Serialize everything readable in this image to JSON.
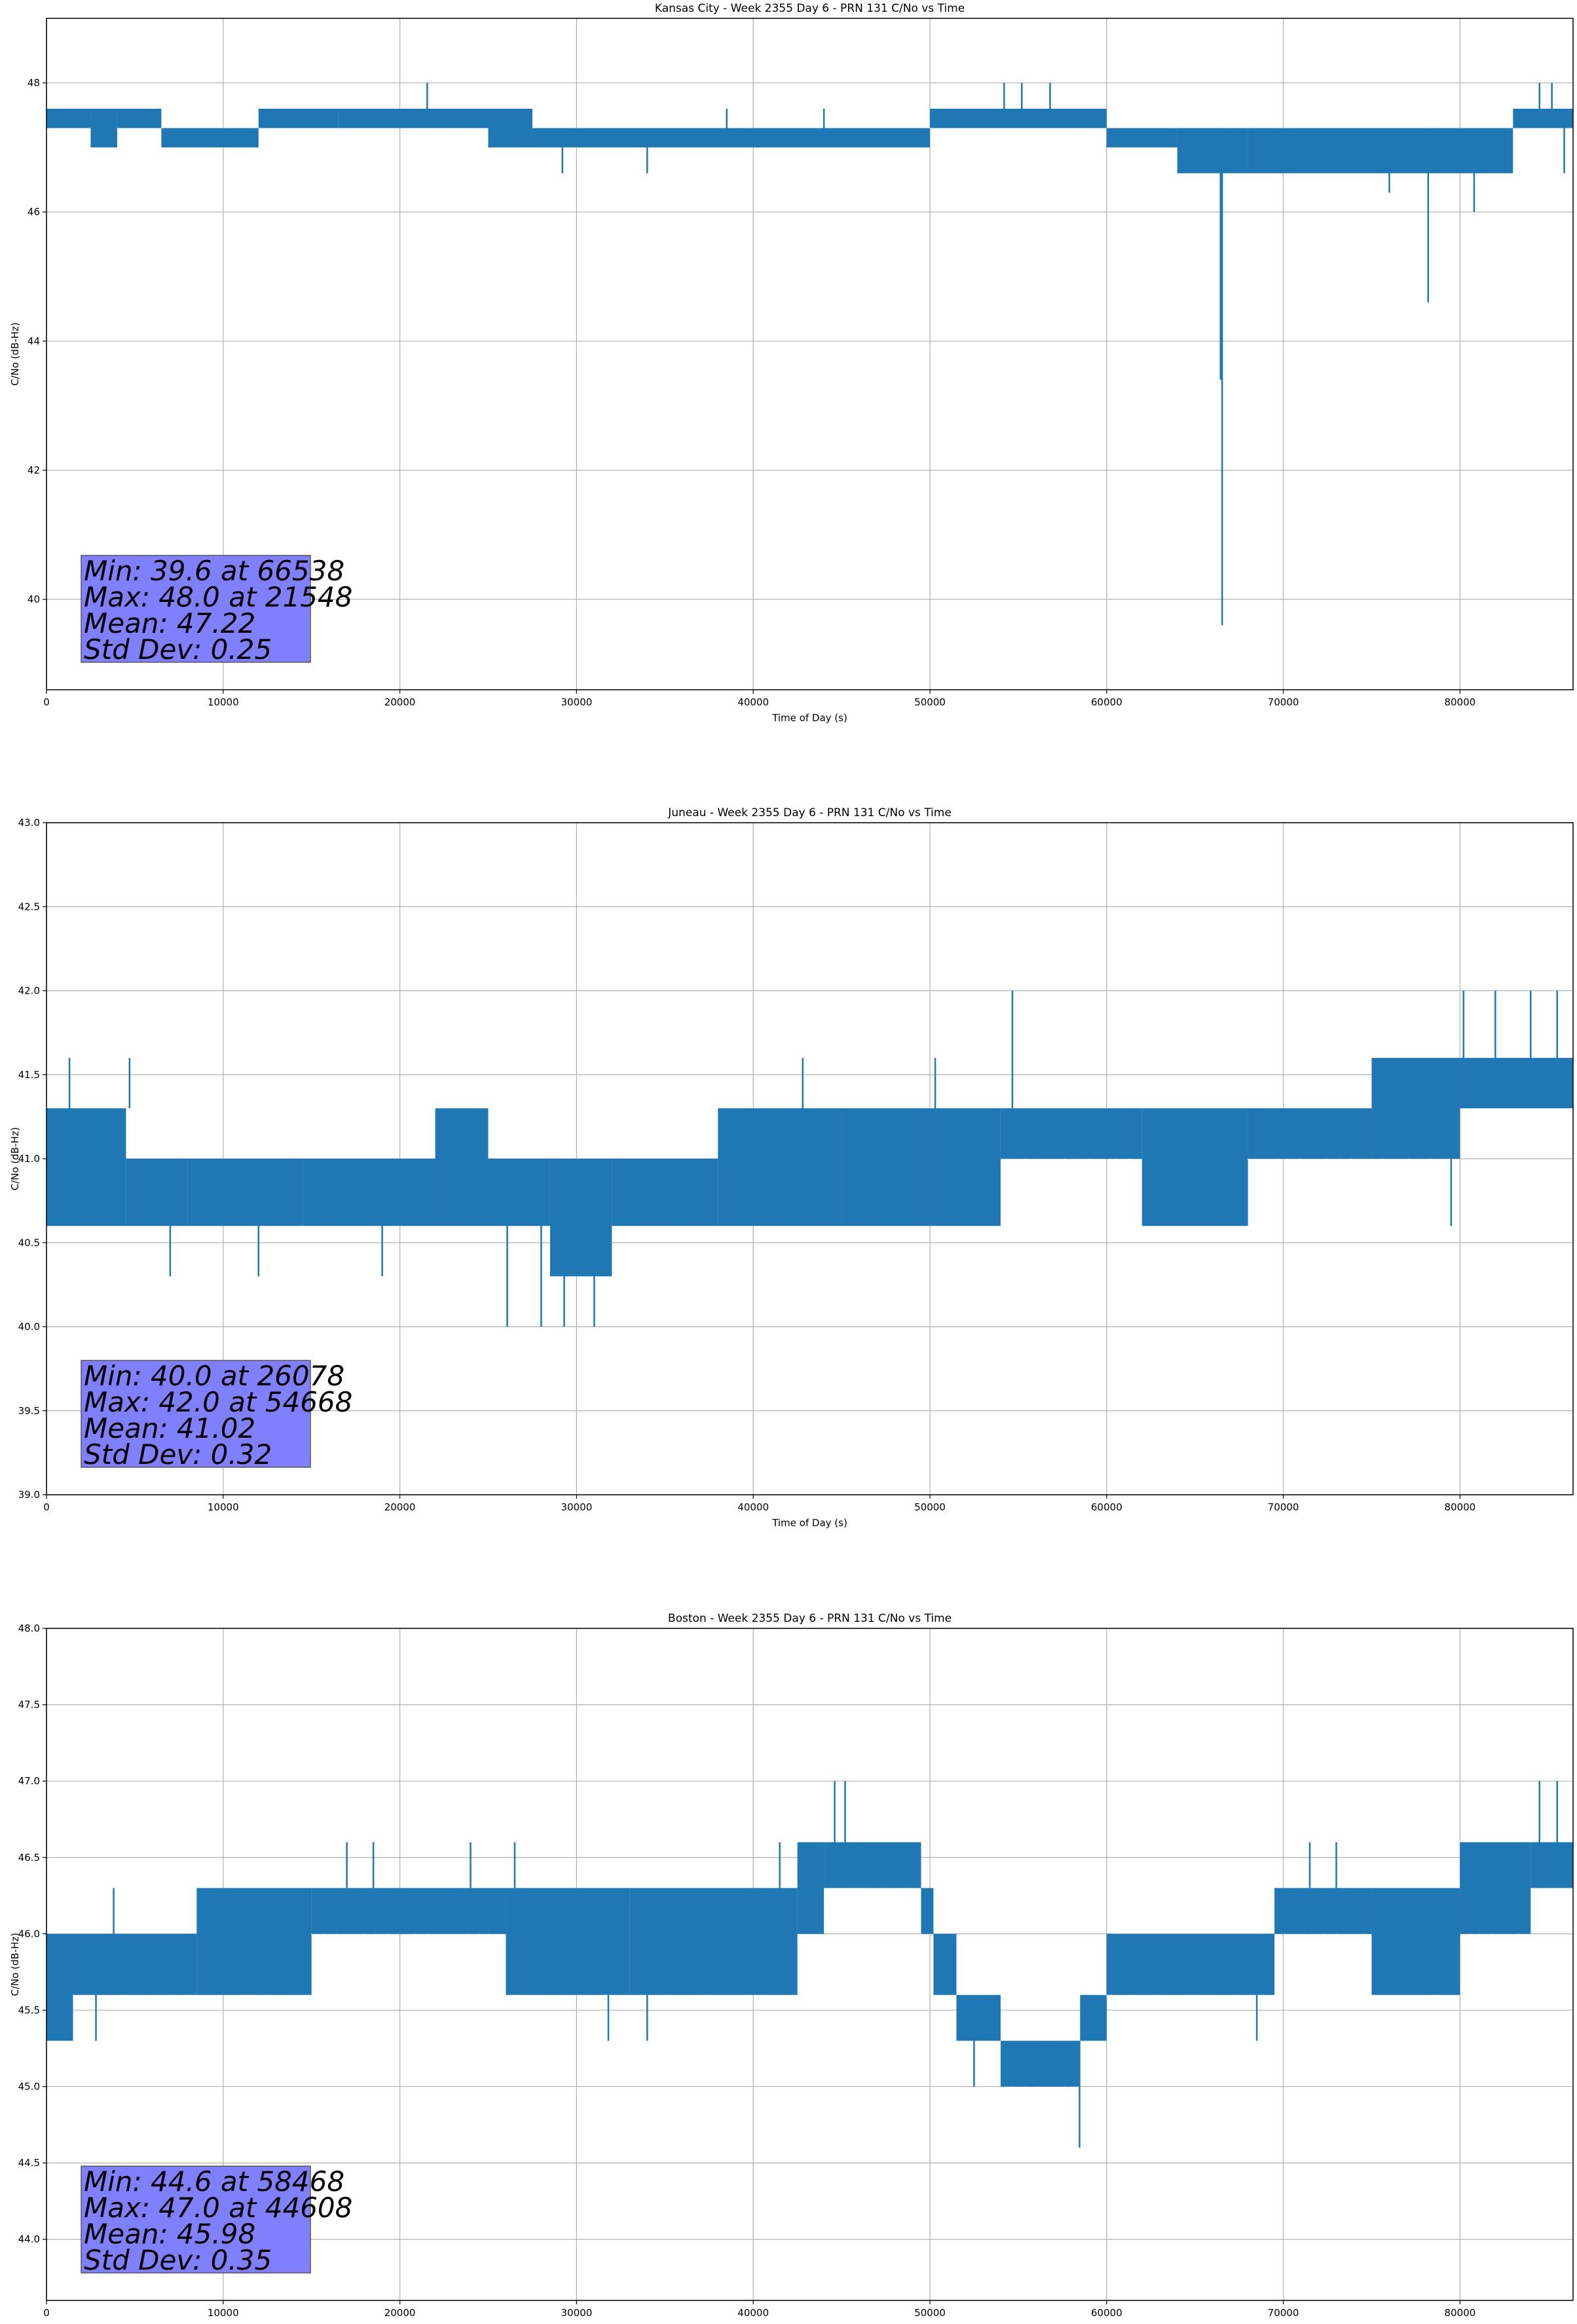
{
  "chart_data": [
    {
      "type": "line",
      "title": "Kansas City - Week 2355 Day 6 - PRN 131 C/No vs Time",
      "xlabel": "Time of Day (s)",
      "ylabel": "C/No (dB-Hz)",
      "xlim": [
        0,
        86400
      ],
      "ylim": [
        38.6,
        49.0
      ],
      "xticks": [
        0,
        10000,
        20000,
        30000,
        40000,
        50000,
        60000,
        70000,
        80000
      ],
      "yticks": [
        40,
        42,
        44,
        46,
        48
      ],
      "ytick_labels": [
        "40",
        "42",
        "44",
        "46",
        "48"
      ],
      "grid": true,
      "color": "#1f77b4",
      "series": [
        {
          "name": "C/No",
          "segments": [
            {
              "x0": 0,
              "x1": 2500,
              "lo": 47.3,
              "hi": 47.6
            },
            {
              "x0": 2500,
              "x1": 4000,
              "lo": 47.0,
              "hi": 47.6
            },
            {
              "x0": 4000,
              "x1": 6500,
              "lo": 47.3,
              "hi": 47.6
            },
            {
              "x0": 6500,
              "x1": 12000,
              "lo": 47.0,
              "hi": 47.3
            },
            {
              "x0": 12000,
              "x1": 16500,
              "lo": 47.3,
              "hi": 47.6
            },
            {
              "x0": 16500,
              "x1": 25000,
              "lo": 47.3,
              "hi": 47.6
            },
            {
              "x0": 25000,
              "x1": 27500,
              "lo": 47.0,
              "hi": 47.6
            },
            {
              "x0": 27500,
              "x1": 50000,
              "lo": 47.0,
              "hi": 47.3
            },
            {
              "x0": 50000,
              "x1": 60000,
              "lo": 47.3,
              "hi": 47.6
            },
            {
              "x0": 60000,
              "x1": 64000,
              "lo": 47.0,
              "hi": 47.3
            },
            {
              "x0": 64000,
              "x1": 68000,
              "lo": 46.6,
              "hi": 47.3
            },
            {
              "x0": 68000,
              "x1": 83000,
              "lo": 46.6,
              "hi": 47.3
            },
            {
              "x0": 83000,
              "x1": 86400,
              "lo": 47.3,
              "hi": 47.6
            }
          ],
          "spikes": [
            {
              "x": 21548,
              "lo": 47.3,
              "hi": 48.0
            },
            {
              "x": 38500,
              "lo": 47.3,
              "hi": 47.6
            },
            {
              "x": 44000,
              "lo": 47.3,
              "hi": 47.6
            },
            {
              "x": 54200,
              "lo": 47.6,
              "hi": 48.0
            },
            {
              "x": 55200,
              "lo": 47.6,
              "hi": 48.0
            },
            {
              "x": 56800,
              "lo": 47.6,
              "hi": 48.0
            },
            {
              "x": 29200,
              "lo": 46.6,
              "hi": 47.0
            },
            {
              "x": 34000,
              "lo": 46.6,
              "hi": 47.0
            },
            {
              "x": 66538,
              "lo": 39.6,
              "hi": 47.3
            },
            {
              "x": 66450,
              "lo": 43.4,
              "hi": 47.3
            },
            {
              "x": 76000,
              "lo": 46.3,
              "hi": 46.6
            },
            {
              "x": 78200,
              "lo": 44.6,
              "hi": 47.3
            },
            {
              "x": 80800,
              "lo": 46.0,
              "hi": 46.6
            },
            {
              "x": 84500,
              "lo": 47.6,
              "hi": 48.0
            },
            {
              "x": 85200,
              "lo": 47.6,
              "hi": 48.0
            },
            {
              "x": 85900,
              "lo": 46.6,
              "hi": 47.6
            }
          ]
        }
      ],
      "stats_text": [
        "Min: 39.6 at 66538",
        "Max: 48.0 at 21548",
        "Mean: 47.22",
        "Std Dev: 0.25"
      ],
      "stats_box_color": "#8080ff"
    },
    {
      "type": "line",
      "title": "Juneau - Week 2355 Day 6 - PRN 131 C/No vs Time",
      "xlabel": "Time of Day (s)",
      "ylabel": "C/No (dB-Hz)",
      "xlim": [
        0,
        86400
      ],
      "ylim": [
        39.0,
        43.0
      ],
      "xticks": [
        0,
        10000,
        20000,
        30000,
        40000,
        50000,
        60000,
        70000,
        80000
      ],
      "yticks": [
        39.0,
        39.5,
        40.0,
        40.5,
        41.0,
        41.5,
        42.0,
        42.5,
        43.0
      ],
      "ytick_labels": [
        "39.0",
        "39.5",
        "40.0",
        "40.5",
        "41.0",
        "41.5",
        "42.0",
        "42.5",
        "43.0"
      ],
      "grid": true,
      "color": "#1f77b4",
      "series": [
        {
          "name": "C/No",
          "segments": [
            {
              "x0": 0,
              "x1": 4500,
              "lo": 40.6,
              "hi": 41.3
            },
            {
              "x0": 4500,
              "x1": 8000,
              "lo": 40.6,
              "hi": 41.0
            },
            {
              "x0": 8000,
              "x1": 14500,
              "lo": 40.6,
              "hi": 41.0
            },
            {
              "x0": 14500,
              "x1": 22000,
              "lo": 40.6,
              "hi": 41.0
            },
            {
              "x0": 22000,
              "x1": 25000,
              "lo": 40.6,
              "hi": 41.3
            },
            {
              "x0": 25000,
              "x1": 28500,
              "lo": 40.6,
              "hi": 41.0
            },
            {
              "x0": 28500,
              "x1": 32000,
              "lo": 40.3,
              "hi": 41.0
            },
            {
              "x0": 32000,
              "x1": 38000,
              "lo": 40.6,
              "hi": 41.0
            },
            {
              "x0": 38000,
              "x1": 45000,
              "lo": 40.6,
              "hi": 41.3
            },
            {
              "x0": 45000,
              "x1": 50000,
              "lo": 40.6,
              "hi": 41.3
            },
            {
              "x0": 50000,
              "x1": 54000,
              "lo": 40.6,
              "hi": 41.3
            },
            {
              "x0": 54000,
              "x1": 62000,
              "lo": 41.0,
              "hi": 41.3
            },
            {
              "x0": 62000,
              "x1": 68000,
              "lo": 40.6,
              "hi": 41.3
            },
            {
              "x0": 68000,
              "x1": 75000,
              "lo": 41.0,
              "hi": 41.3
            },
            {
              "x0": 75000,
              "x1": 80000,
              "lo": 41.0,
              "hi": 41.6
            },
            {
              "x0": 80000,
              "x1": 86400,
              "lo": 41.3,
              "hi": 41.6
            }
          ],
          "spikes": [
            {
              "x": 1300,
              "lo": 41.3,
              "hi": 41.6
            },
            {
              "x": 4700,
              "lo": 41.3,
              "hi": 41.6
            },
            {
              "x": 7000,
              "lo": 40.3,
              "hi": 40.6
            },
            {
              "x": 12000,
              "lo": 40.3,
              "hi": 40.6
            },
            {
              "x": 19000,
              "lo": 40.3,
              "hi": 40.6
            },
            {
              "x": 26078,
              "lo": 40.0,
              "hi": 40.6
            },
            {
              "x": 28000,
              "lo": 40.0,
              "hi": 40.6
            },
            {
              "x": 29300,
              "lo": 40.0,
              "hi": 40.3
            },
            {
              "x": 31000,
              "lo": 40.0,
              "hi": 40.3
            },
            {
              "x": 42800,
              "lo": 41.3,
              "hi": 41.6
            },
            {
              "x": 50300,
              "lo": 41.3,
              "hi": 41.6
            },
            {
              "x": 54668,
              "lo": 41.3,
              "hi": 42.0
            },
            {
              "x": 80200,
              "lo": 41.6,
              "hi": 42.0
            },
            {
              "x": 82000,
              "lo": 41.6,
              "hi": 42.0
            },
            {
              "x": 84000,
              "lo": 41.6,
              "hi": 42.0
            },
            {
              "x": 85500,
              "lo": 41.6,
              "hi": 42.0
            },
            {
              "x": 79500,
              "lo": 40.6,
              "hi": 41.0
            }
          ]
        }
      ],
      "stats_text": [
        "Min: 40.0 at 26078",
        "Max: 42.0 at 54668",
        "Mean: 41.02",
        "Std Dev: 0.32"
      ],
      "stats_box_color": "#8080ff"
    },
    {
      "type": "line",
      "title": "Boston - Week 2355 Day 6 - PRN 131 C/No vs Time",
      "xlabel": "Time of Day (s)",
      "ylabel": "C/No (dB-Hz)",
      "xlim": [
        0,
        86400
      ],
      "ylim": [
        43.6,
        48.0
      ],
      "xticks": [
        0,
        10000,
        20000,
        30000,
        40000,
        50000,
        60000,
        70000,
        80000
      ],
      "yticks": [
        44.0,
        44.5,
        45.0,
        45.5,
        46.0,
        46.5,
        47.0,
        47.5,
        48.0
      ],
      "ytick_labels": [
        "44.0",
        "44.5",
        "45.0",
        "45.5",
        "46.0",
        "46.5",
        "47.0",
        "47.5",
        "48.0"
      ],
      "grid": true,
      "color": "#1f77b4",
      "series": [
        {
          "name": "C/No",
          "segments": [
            {
              "x0": 0,
              "x1": 1500,
              "lo": 45.3,
              "hi": 46.0
            },
            {
              "x0": 1500,
              "x1": 8500,
              "lo": 45.6,
              "hi": 46.0
            },
            {
              "x0": 8500,
              "x1": 15000,
              "lo": 45.6,
              "hi": 46.3
            },
            {
              "x0": 15000,
              "x1": 26000,
              "lo": 46.0,
              "hi": 46.3
            },
            {
              "x0": 26000,
              "x1": 33000,
              "lo": 45.6,
              "hi": 46.3
            },
            {
              "x0": 33000,
              "x1": 42500,
              "lo": 45.6,
              "hi": 46.3
            },
            {
              "x0": 42500,
              "x1": 44000,
              "lo": 46.0,
              "hi": 46.6
            },
            {
              "x0": 44000,
              "x1": 49500,
              "lo": 46.3,
              "hi": 46.6
            },
            {
              "x0": 49500,
              "x1": 50200,
              "lo": 46.0,
              "hi": 46.3
            },
            {
              "x0": 50200,
              "x1": 51500,
              "lo": 45.6,
              "hi": 46.0
            },
            {
              "x0": 51500,
              "x1": 54000,
              "lo": 45.3,
              "hi": 45.6
            },
            {
              "x0": 54000,
              "x1": 58500,
              "lo": 45.0,
              "hi": 45.3
            },
            {
              "x0": 58500,
              "x1": 60000,
              "lo": 45.3,
              "hi": 45.6
            },
            {
              "x0": 60000,
              "x1": 69500,
              "lo": 45.6,
              "hi": 46.0
            },
            {
              "x0": 69500,
              "x1": 72000,
              "lo": 46.0,
              "hi": 46.3
            },
            {
              "x0": 72000,
              "x1": 75000,
              "lo": 46.0,
              "hi": 46.3
            },
            {
              "x0": 75000,
              "x1": 80000,
              "lo": 45.6,
              "hi": 46.3
            },
            {
              "x0": 80000,
              "x1": 84000,
              "lo": 46.0,
              "hi": 46.6
            },
            {
              "x0": 84000,
              "x1": 86400,
              "lo": 46.3,
              "hi": 46.6
            }
          ],
          "spikes": [
            {
              "x": 2800,
              "lo": 45.3,
              "hi": 45.6
            },
            {
              "x": 3800,
              "lo": 46.0,
              "hi": 46.3
            },
            {
              "x": 17000,
              "lo": 46.3,
              "hi": 46.6
            },
            {
              "x": 18500,
              "lo": 46.3,
              "hi": 46.6
            },
            {
              "x": 24000,
              "lo": 46.3,
              "hi": 46.6
            },
            {
              "x": 26500,
              "lo": 46.3,
              "hi": 46.6
            },
            {
              "x": 31800,
              "lo": 45.3,
              "hi": 45.6
            },
            {
              "x": 34000,
              "lo": 45.3,
              "hi": 45.6
            },
            {
              "x": 41500,
              "lo": 46.3,
              "hi": 46.6
            },
            {
              "x": 44608,
              "lo": 46.6,
              "hi": 47.0
            },
            {
              "x": 45200,
              "lo": 46.6,
              "hi": 47.0
            },
            {
              "x": 58468,
              "lo": 44.6,
              "hi": 45.3
            },
            {
              "x": 52500,
              "lo": 45.0,
              "hi": 45.3
            },
            {
              "x": 68500,
              "lo": 45.3,
              "hi": 45.6
            },
            {
              "x": 71500,
              "lo": 46.3,
              "hi": 46.6
            },
            {
              "x": 73000,
              "lo": 46.3,
              "hi": 46.6
            },
            {
              "x": 84500,
              "lo": 46.6,
              "hi": 47.0
            },
            {
              "x": 85500,
              "lo": 46.6,
              "hi": 47.0
            }
          ]
        }
      ],
      "stats_text": [
        "Min: 44.6 at 58468",
        "Max: 47.0 at 44608",
        "Mean: 45.98",
        "Std Dev: 0.35"
      ],
      "stats_box_color": "#8080ff"
    }
  ]
}
